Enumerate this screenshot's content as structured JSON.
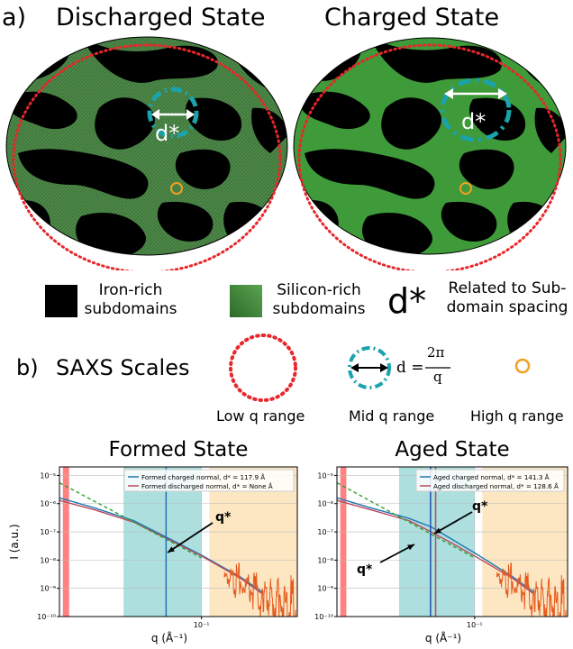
{
  "panel_a": {
    "label": "a)",
    "discharged_title": "Discharged State",
    "charged_title": "Charged State",
    "dstar_label": "d*",
    "colors": {
      "iron": "#000000",
      "silicon": "#3f9a3a",
      "red_circle": "#e8262b",
      "teal_circle": "#1aa3aa",
      "orange_circle": "#f0a020"
    }
  },
  "legend": {
    "iron_line1": "Iron-rich",
    "iron_line2": "subdomains",
    "silicon_line1": "Silicon-rich",
    "silicon_line2": "subdomains",
    "dstar_symbol": "d*",
    "dstar_line1": "Related to Sub-",
    "dstar_line2": "domain spacing"
  },
  "panel_b": {
    "label": "b)",
    "title": "SAXS Scales",
    "formula_lhs": "d =",
    "formula_num": "2π",
    "formula_den": "q",
    "low_label": "Low q range",
    "mid_label": "Mid q range",
    "high_label": "High q range"
  },
  "chart_data": [
    {
      "type": "line",
      "title": "Formed State",
      "xlabel": "q (Å⁻¹)",
      "ylabel": "I (a.u.)",
      "xscale": "log",
      "yscale": "log",
      "xlim": [
        0.008,
        0.55
      ],
      "ylim": [
        1e-10,
        2e-05
      ],
      "x_tick_labels": [
        "10⁻¹"
      ],
      "y_tick_labels": [
        "10⁻¹⁰",
        "10⁻⁹",
        "10⁻⁸",
        "10⁻⁷",
        "10⁻⁶",
        "10⁻⁵"
      ],
      "legend": [
        "Formed charged normal, d* = 117.9 Å",
        "Formed discharged normal, d* = None Å"
      ],
      "legend_position": "top-right",
      "annotation": "q*",
      "shaded_ranges": [
        {
          "name": "low",
          "color": "#ff6b6b",
          "q": [
            0.0085,
            0.0095
          ]
        },
        {
          "name": "mid",
          "color": "#9fd9d9",
          "q": [
            0.025,
            0.1
          ]
        },
        {
          "name": "high",
          "color": "#fde3b8",
          "q": [
            0.115,
            0.55
          ]
        }
      ],
      "vlines": [
        {
          "q": 0.0533,
          "color": "#1f77b4"
        }
      ],
      "series": [
        {
          "color": "#1f77b4",
          "x": [
            0.008,
            0.015,
            0.03,
            0.06,
            0.1,
            0.2,
            0.3
          ],
          "y": [
            1.6e-06,
            7e-07,
            2.5e-07,
            5e-08,
            1.5e-08,
            2.5e-09,
            7e-10
          ]
        },
        {
          "color": "#b84a5a",
          "x": [
            0.008,
            0.015,
            0.03,
            0.06,
            0.1,
            0.2,
            0.3
          ],
          "y": [
            1.3e-06,
            6e-07,
            2.2e-07,
            4.5e-08,
            1.4e-08,
            2.3e-09,
            6e-10
          ]
        },
        {
          "color": "#2ca02c",
          "dashed": true,
          "x": [
            0.008,
            0.1
          ],
          "y": [
            5.5e-06,
            1.2e-08
          ]
        },
        {
          "color": "#e65a1e",
          "noise": true,
          "x": [
            0.15,
            0.2,
            0.3,
            0.4,
            0.55
          ],
          "y": [
            2.5e-09,
            1.5e-09,
            5e-10,
            3e-10,
            2e-10
          ]
        }
      ]
    },
    {
      "type": "line",
      "title": "Aged State",
      "xlabel": "q (Å⁻¹)",
      "ylabel": "",
      "xscale": "log",
      "yscale": "log",
      "xlim": [
        0.008,
        0.55
      ],
      "ylim": [
        1e-10,
        2e-05
      ],
      "x_tick_labels": [
        "10⁻¹"
      ],
      "y_tick_labels": [
        "10⁻¹⁰",
        "10⁻⁹",
        "10⁻⁸",
        "10⁻⁷",
        "10⁻⁶",
        "10⁻⁵"
      ],
      "legend": [
        "Aged charged normal, d* = 141.3 Å",
        "Aged discharged normal, d* = 128.6 Å"
      ],
      "legend_position": "top-right",
      "annotation": "q*",
      "annotation2": "q*",
      "shaded_ranges": [
        {
          "name": "low",
          "color": "#ff6b6b",
          "q": [
            0.0085,
            0.0095
          ]
        },
        {
          "name": "mid",
          "color": "#9fd9d9",
          "q": [
            0.025,
            0.1
          ]
        },
        {
          "name": "high",
          "color": "#fde3b8",
          "q": [
            0.115,
            0.55
          ]
        }
      ],
      "vlines": [
        {
          "q": 0.0445,
          "color": "#1f4fb4"
        },
        {
          "q": 0.0489,
          "color": "#b84a5a"
        }
      ],
      "series": [
        {
          "color": "#1f77b4",
          "x": [
            0.008,
            0.015,
            0.03,
            0.045,
            0.06,
            0.1,
            0.2,
            0.3
          ],
          "y": [
            1.6e-06,
            7e-07,
            3e-07,
            1.5e-07,
            7e-08,
            1.8e-08,
            2.6e-09,
            7e-10
          ]
        },
        {
          "color": "#b84a5a",
          "x": [
            0.008,
            0.015,
            0.03,
            0.045,
            0.06,
            0.1,
            0.2,
            0.3
          ],
          "y": [
            1.3e-06,
            6e-07,
            2.5e-07,
            1e-07,
            5e-08,
            1.4e-08,
            2.3e-09,
            6e-10
          ]
        },
        {
          "color": "#2ca02c",
          "dashed": true,
          "x": [
            0.008,
            0.1
          ],
          "y": [
            5.5e-06,
            1.2e-08
          ]
        },
        {
          "color": "#e65a1e",
          "noise": true,
          "x": [
            0.15,
            0.2,
            0.3,
            0.4,
            0.55
          ],
          "y": [
            2.5e-09,
            1.5e-09,
            5e-10,
            3e-10,
            2e-10
          ]
        }
      ]
    }
  ]
}
